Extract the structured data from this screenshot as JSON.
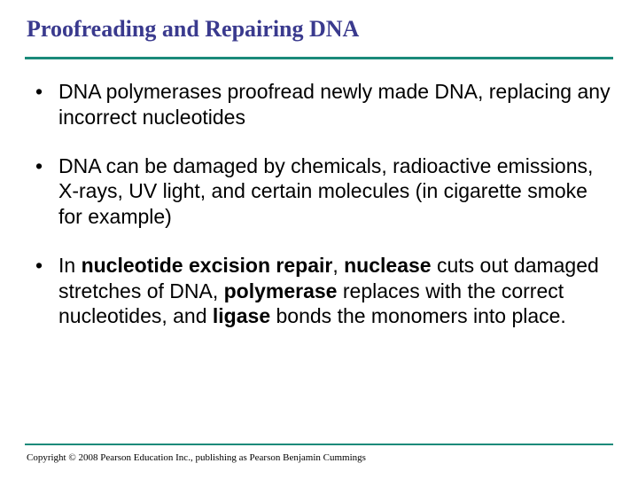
{
  "title": "Proofreading and Repairing DNA",
  "bullets": {
    "b1": "DNA polymerases proofread newly made DNA, replacing any incorrect nucleotides",
    "b2": "DNA can be damaged by chemicals, radioactive emissions, X-rays, UV light, and certain molecules (in cigarette smoke for example)",
    "b3_pre": "In ",
    "b3_t1": "nucleotide excision repair",
    "b3_m1": ", ",
    "b3_t2": "nuclease",
    "b3_m2": " cuts out damaged stretches of DNA, ",
    "b3_t3": "polymerase",
    "b3_m3": " replaces with the correct nucleotides, and ",
    "b3_t4": "ligase",
    "b3_m4": " bonds the monomers into place."
  },
  "copyright": "Copyright © 2008 Pearson Education Inc., publishing as Pearson Benjamin Cummings",
  "colors": {
    "title": "#3a3a8e",
    "rule": "#1a8a7a",
    "text": "#000000",
    "background": "#ffffff"
  }
}
